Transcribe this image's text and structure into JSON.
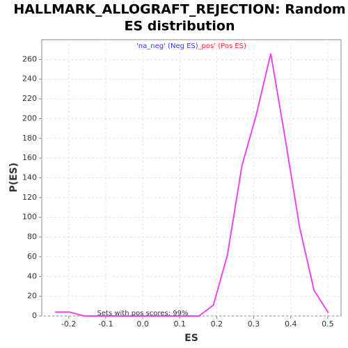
{
  "chart_data": {
    "type": "line",
    "title": "HALLMARK_ALLOGRAFT_REJECTION: Random",
    "subtitle": "ES distribution",
    "x_label": "ES",
    "y_label": "P(ES)",
    "legend_neg": "'na_neg' (Neg ES)",
    "legend_pos": "_pos' (Pos ES)",
    "legend_neg_color": "#3333ff",
    "legend_pos_color": "#ff2222",
    "annotation": "Sets with pos scores: 99%",
    "x": [
      -0.237,
      -0.198,
      -0.159,
      -0.12,
      -0.081,
      -0.043,
      -0.004,
      0.035,
      0.074,
      0.113,
      0.152,
      0.191,
      0.229,
      0.268,
      0.307,
      0.346,
      0.385,
      0.424,
      0.463,
      0.502
    ],
    "series": [
      {
        "name": "ES",
        "color": "#ee44ee",
        "values": [
          4,
          4,
          0,
          0,
          0,
          0,
          0,
          0,
          0,
          0,
          0,
          11,
          62,
          152,
          204,
          266,
          180,
          90,
          26,
          3
        ]
      }
    ],
    "xlim": [
      -0.273,
      0.536
    ],
    "ylim": [
      0,
      280
    ],
    "xticks": [
      -0.2,
      -0.1,
      {
        "value": 0,
        "label": "0.0"
      },
      0.1,
      0.2,
      0.3,
      0.4,
      0.5
    ],
    "yticks": [
      0,
      20,
      40,
      60,
      80,
      100,
      120,
      140,
      160,
      180,
      200,
      220,
      240,
      260
    ],
    "grid": true
  }
}
